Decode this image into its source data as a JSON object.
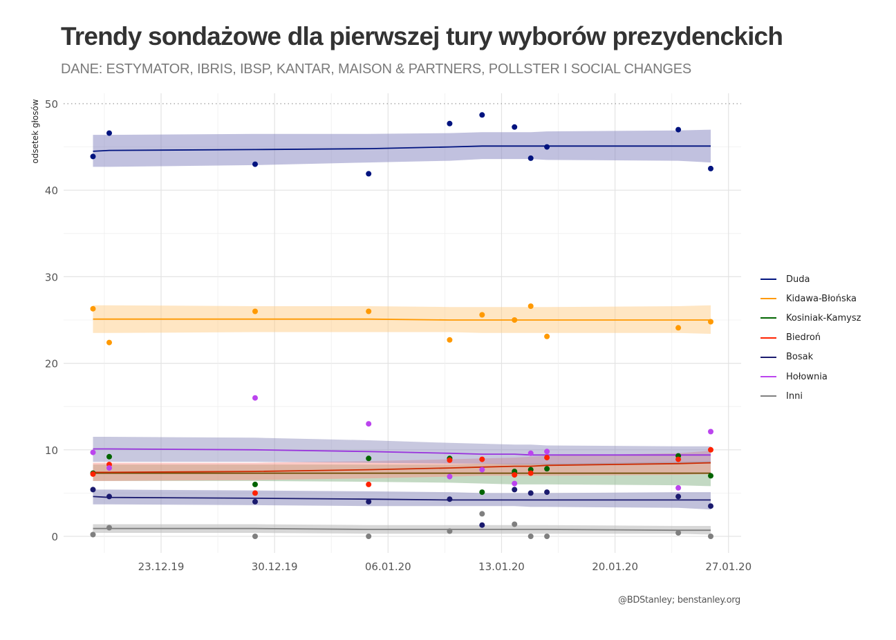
{
  "chart_data": {
    "type": "scatter",
    "title": "Trendy sondażowe dla pierwszej tury wyborów prezydenckich",
    "subtitle": "DANE: ESTYMATOR, IBRIS, IBSP, KANTAR, MAISON & PARTNERS, POLLSTER I SOCIAL CHANGES",
    "caption": "@BDStanley; benstanley.org",
    "xlabel": "",
    "ylabel": "odsetek głosów",
    "ylim": [
      0,
      50
    ],
    "yticks": [
      "0",
      "10",
      "20",
      "30",
      "40",
      "50"
    ],
    "yticks_values": [
      0,
      10,
      20,
      30,
      40,
      50
    ],
    "xticks": [
      "23.12.19",
      "30.12.19",
      "06.01.20",
      "13.01.20",
      "20.01.20",
      "27.01.20"
    ],
    "xticks_days": [
      0,
      7,
      14,
      21,
      28,
      35
    ],
    "x_unit": "days since 23.12.19",
    "xlim_days": [
      -6.3,
      36
    ],
    "reference_line": 50,
    "grid": true,
    "legend_position": "right",
    "x": [
      -4.2,
      -3.2,
      5.8,
      12.8,
      17.8,
      19.8,
      21.8,
      22.8,
      23.8,
      31.9,
      33.9
    ],
    "series": [
      {
        "name": "Duda",
        "color": "#00137f",
        "values": [
          43.9,
          46.6,
          43.0,
          41.9,
          47.7,
          48.7,
          47.3,
          43.7,
          45.0,
          47.0,
          42.5
        ],
        "trend": [
          44.5,
          44.6,
          44.7,
          44.8,
          45.0,
          45.1,
          45.1,
          45.1,
          45.1,
          45.1,
          45.1
        ],
        "lower": [
          42.7,
          42.7,
          42.9,
          43.2,
          43.4,
          43.6,
          43.6,
          43.6,
          43.5,
          43.4,
          43.2
        ],
        "upper": [
          46.4,
          46.4,
          46.5,
          46.5,
          46.6,
          46.7,
          46.7,
          46.7,
          46.8,
          46.9,
          47.0
        ]
      },
      {
        "name": "Kidawa-Błońska",
        "color": "#ff9900",
        "values": [
          26.3,
          22.4,
          26.0,
          26.0,
          22.7,
          25.6,
          25.0,
          26.6,
          23.1,
          24.1,
          24.8
        ],
        "trend": [
          25.1,
          25.1,
          25.1,
          25.1,
          25.0,
          25.0,
          25.0,
          25.0,
          25.0,
          25.0,
          25.0
        ],
        "lower": [
          23.5,
          23.5,
          23.6,
          23.6,
          23.6,
          23.5,
          23.5,
          23.5,
          23.5,
          23.5,
          23.4
        ],
        "upper": [
          26.7,
          26.7,
          26.6,
          26.6,
          26.5,
          26.5,
          26.5,
          26.5,
          26.5,
          26.6,
          26.7
        ]
      },
      {
        "name": "Kosiniak-Kamysz",
        "color": "#006400",
        "values": [
          7.3,
          9.2,
          6.0,
          9.0,
          9.0,
          5.1,
          7.5,
          7.7,
          7.8,
          9.3,
          7.0
        ],
        "trend": [
          7.3,
          7.3,
          7.3,
          7.3,
          7.3,
          7.3,
          7.3,
          7.3,
          7.3,
          7.3,
          7.3
        ],
        "lower": [
          6.4,
          6.4,
          6.4,
          6.3,
          6.2,
          6.1,
          6.0,
          6.0,
          6.0,
          5.9,
          5.8
        ],
        "upper": [
          8.3,
          8.3,
          8.3,
          8.3,
          8.3,
          8.4,
          8.4,
          8.4,
          8.4,
          8.6,
          8.7
        ]
      },
      {
        "name": "Biedroń",
        "color": "#ff2200",
        "values": [
          7.2,
          8.3,
          5.0,
          6.0,
          8.8,
          8.9,
          7.1,
          7.3,
          9.1,
          8.9,
          10.0
        ],
        "trend": [
          7.4,
          7.4,
          7.5,
          7.7,
          7.9,
          8.0,
          8.1,
          8.1,
          8.2,
          8.4,
          8.5
        ],
        "lower": [
          6.4,
          6.4,
          6.5,
          6.7,
          6.9,
          7.0,
          7.0,
          7.0,
          7.0,
          7.1,
          7.2
        ],
        "upper": [
          8.5,
          8.5,
          8.5,
          8.7,
          8.9,
          9.0,
          9.1,
          9.2,
          9.3,
          9.6,
          9.9
        ]
      },
      {
        "name": "Bosak",
        "color": "#1a1a6e",
        "values": [
          5.4,
          4.6,
          4.0,
          4.0,
          4.3,
          1.3,
          5.4,
          5.0,
          5.1,
          4.6,
          3.5
        ],
        "trend": [
          4.6,
          4.5,
          4.4,
          4.3,
          4.2,
          4.2,
          4.2,
          4.2,
          4.2,
          4.2,
          4.2
        ],
        "lower": [
          3.7,
          3.7,
          3.6,
          3.5,
          3.5,
          3.5,
          3.5,
          3.4,
          3.4,
          3.3,
          3.1
        ],
        "upper": [
          5.4,
          5.4,
          5.3,
          5.2,
          5.1,
          5.0,
          5.0,
          5.0,
          5.0,
          5.1,
          5.1
        ]
      },
      {
        "name": "Hołownia",
        "color": "#bb44ee",
        "values": [
          9.7,
          7.9,
          16.0,
          13.0,
          6.9,
          7.7,
          6.1,
          9.6,
          9.8,
          5.6,
          12.1
        ],
        "trend": [
          10.1,
          10.1,
          10.0,
          9.8,
          9.6,
          9.5,
          9.5,
          9.4,
          9.4,
          9.4,
          9.4
        ],
        "lower": [
          8.6,
          8.6,
          8.6,
          8.5,
          8.4,
          8.4,
          8.3,
          8.3,
          8.3,
          8.4,
          8.4
        ],
        "upper": [
          11.5,
          11.5,
          11.4,
          11.1,
          10.8,
          10.7,
          10.6,
          10.6,
          10.5,
          10.4,
          10.4
        ]
      },
      {
        "name": "Inni",
        "color": "#7f7f7f",
        "values": [
          0.2,
          1.0,
          0.0,
          0.0,
          0.6,
          2.6,
          1.4,
          0.0,
          0.0,
          0.4,
          0.0
        ],
        "trend": [
          0.9,
          0.9,
          0.9,
          0.8,
          0.8,
          0.8,
          0.8,
          0.8,
          0.8,
          0.7,
          0.7
        ],
        "lower": [
          0.4,
          0.4,
          0.4,
          0.3,
          0.3,
          0.3,
          0.3,
          0.3,
          0.3,
          0.3,
          0.2
        ],
        "upper": [
          1.4,
          1.4,
          1.4,
          1.3,
          1.3,
          1.3,
          1.3,
          1.3,
          1.3,
          1.2,
          1.2
        ]
      }
    ]
  }
}
